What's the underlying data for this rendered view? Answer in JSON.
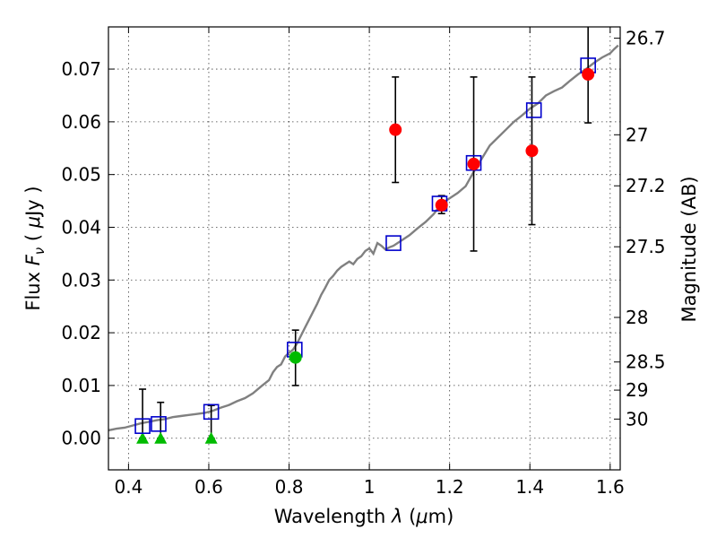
{
  "chart_data": {
    "type": "scatter",
    "title": "",
    "xlabel": "Wavelength  λ (μm)",
    "ylabel": "Flux  F_ν  ( μJy )",
    "ylabel_parts": {
      "a": "Flux ",
      "b": "F",
      "c": "ν",
      "d": "  ( ",
      "e": "μ",
      "f": "Jy )"
    },
    "xlabel_parts": {
      "a": "Wavelength  ",
      "b": "λ",
      "c": " (",
      "d": "μ",
      "e": "m)"
    },
    "ylabel_right": "Magnitude (AB)",
    "xlim": [
      0.35,
      1.625
    ],
    "ylim": [
      -0.006,
      0.078
    ],
    "grid": true,
    "x_ticks": [
      {
        "value": 0.4,
        "label": "0.4"
      },
      {
        "value": 0.6,
        "label": "0.6"
      },
      {
        "value": 0.8,
        "label": "0.8"
      },
      {
        "value": 1.0,
        "label": "1"
      },
      {
        "value": 1.2,
        "label": "1.2"
      },
      {
        "value": 1.4,
        "label": "1.4"
      },
      {
        "value": 1.6,
        "label": "1.6"
      }
    ],
    "y_ticks": [
      {
        "value": 0.0,
        "label": "0.00"
      },
      {
        "value": 0.01,
        "label": "0.01"
      },
      {
        "value": 0.02,
        "label": "0.02"
      },
      {
        "value": 0.03,
        "label": "0.03"
      },
      {
        "value": 0.04,
        "label": "0.04"
      },
      {
        "value": 0.05,
        "label": "0.05"
      },
      {
        "value": 0.06,
        "label": "0.06"
      },
      {
        "value": 0.07,
        "label": "0.07"
      }
    ],
    "right_ticks": [
      {
        "value": 26.7,
        "label": "26.7"
      },
      {
        "value": 27.0,
        "label": "27"
      },
      {
        "value": 27.2,
        "label": "27.2"
      },
      {
        "value": 27.5,
        "label": "27.5"
      },
      {
        "value": 28.0,
        "label": "28"
      },
      {
        "value": 28.5,
        "label": "28.5"
      },
      {
        "value": 29.0,
        "label": "29"
      },
      {
        "value": 30.0,
        "label": "30"
      }
    ],
    "colors": {
      "model": "#808080",
      "model_points": "#0000cc",
      "detections_red": "#ff0000",
      "detections_green": "#00bb00",
      "errorbars": "#000000"
    },
    "series": [
      {
        "name": "model spectrum",
        "kind": "line",
        "x": [
          0.35,
          0.37,
          0.39,
          0.41,
          0.43,
          0.45,
          0.47,
          0.49,
          0.51,
          0.53,
          0.55,
          0.57,
          0.59,
          0.6,
          0.61,
          0.62,
          0.63,
          0.65,
          0.67,
          0.69,
          0.71,
          0.73,
          0.75,
          0.76,
          0.77,
          0.78,
          0.79,
          0.8,
          0.81,
          0.82,
          0.83,
          0.84,
          0.85,
          0.86,
          0.87,
          0.88,
          0.89,
          0.9,
          0.91,
          0.92,
          0.93,
          0.94,
          0.95,
          0.96,
          0.97,
          0.98,
          0.99,
          1.0,
          1.01,
          1.02,
          1.03,
          1.04,
          1.05,
          1.06,
          1.08,
          1.1,
          1.12,
          1.14,
          1.16,
          1.18,
          1.2,
          1.22,
          1.24,
          1.26,
          1.28,
          1.3,
          1.32,
          1.34,
          1.36,
          1.38,
          1.4,
          1.42,
          1.44,
          1.46,
          1.48,
          1.5,
          1.52,
          1.54,
          1.56,
          1.58,
          1.6,
          1.61,
          1.62
        ],
        "y": [
          0.0015,
          0.0018,
          0.002,
          0.0024,
          0.0028,
          0.0031,
          0.0034,
          0.0036,
          0.004,
          0.0042,
          0.0044,
          0.0046,
          0.0048,
          0.005,
          0.0052,
          0.0055,
          0.0058,
          0.0063,
          0.007,
          0.0076,
          0.0085,
          0.0098,
          0.011,
          0.0125,
          0.0135,
          0.014,
          0.0155,
          0.0162,
          0.0168,
          0.018,
          0.0195,
          0.021,
          0.0225,
          0.024,
          0.0255,
          0.0272,
          0.0285,
          0.03,
          0.0308,
          0.0318,
          0.0325,
          0.033,
          0.0335,
          0.033,
          0.034,
          0.0345,
          0.0355,
          0.036,
          0.035,
          0.037,
          0.0365,
          0.0358,
          0.0362,
          0.0365,
          0.0375,
          0.0385,
          0.0398,
          0.041,
          0.0425,
          0.0445,
          0.0455,
          0.0465,
          0.0478,
          0.0505,
          0.053,
          0.0555,
          0.057,
          0.0585,
          0.06,
          0.0612,
          0.0625,
          0.0635,
          0.065,
          0.0658,
          0.0665,
          0.0678,
          0.069,
          0.07,
          0.0712,
          0.0722,
          0.073,
          0.0738,
          0.0745
        ]
      },
      {
        "name": "model photometry",
        "kind": "open-square",
        "x": [
          0.435,
          0.475,
          0.606,
          0.814,
          1.06,
          1.175,
          1.26,
          1.41,
          1.545
        ],
        "y": [
          0.0023,
          0.0027,
          0.005,
          0.0168,
          0.037,
          0.0445,
          0.0522,
          0.0622,
          0.0707
        ]
      },
      {
        "name": "detections (red)",
        "kind": "filled-circle",
        "x": [
          1.065,
          1.18,
          1.26,
          1.405,
          1.545
        ],
        "y": [
          0.0585,
          0.0442,
          0.052,
          0.0545,
          0.069
        ],
        "yerr_low": [
          0.0485,
          0.0426,
          0.0355,
          0.0405,
          0.0598
        ],
        "yerr_high": [
          0.0685,
          0.046,
          0.0685,
          0.0685,
          0.0782
        ]
      },
      {
        "name": "detection (green)",
        "kind": "filled-circle",
        "x": [
          0.816
        ],
        "y": [
          0.0153
        ],
        "yerr_low": [
          0.01
        ],
        "yerr_high": [
          0.0205
        ]
      },
      {
        "name": "upper limits (green)",
        "kind": "triangle",
        "x": [
          0.435,
          0.48,
          0.606
        ],
        "y": [
          0.0,
          0.0,
          0.0
        ],
        "yerr_low": [
          0.0,
          0.0,
          0.0
        ],
        "yerr_high": [
          0.0093,
          0.0068,
          0.0062
        ]
      }
    ]
  }
}
